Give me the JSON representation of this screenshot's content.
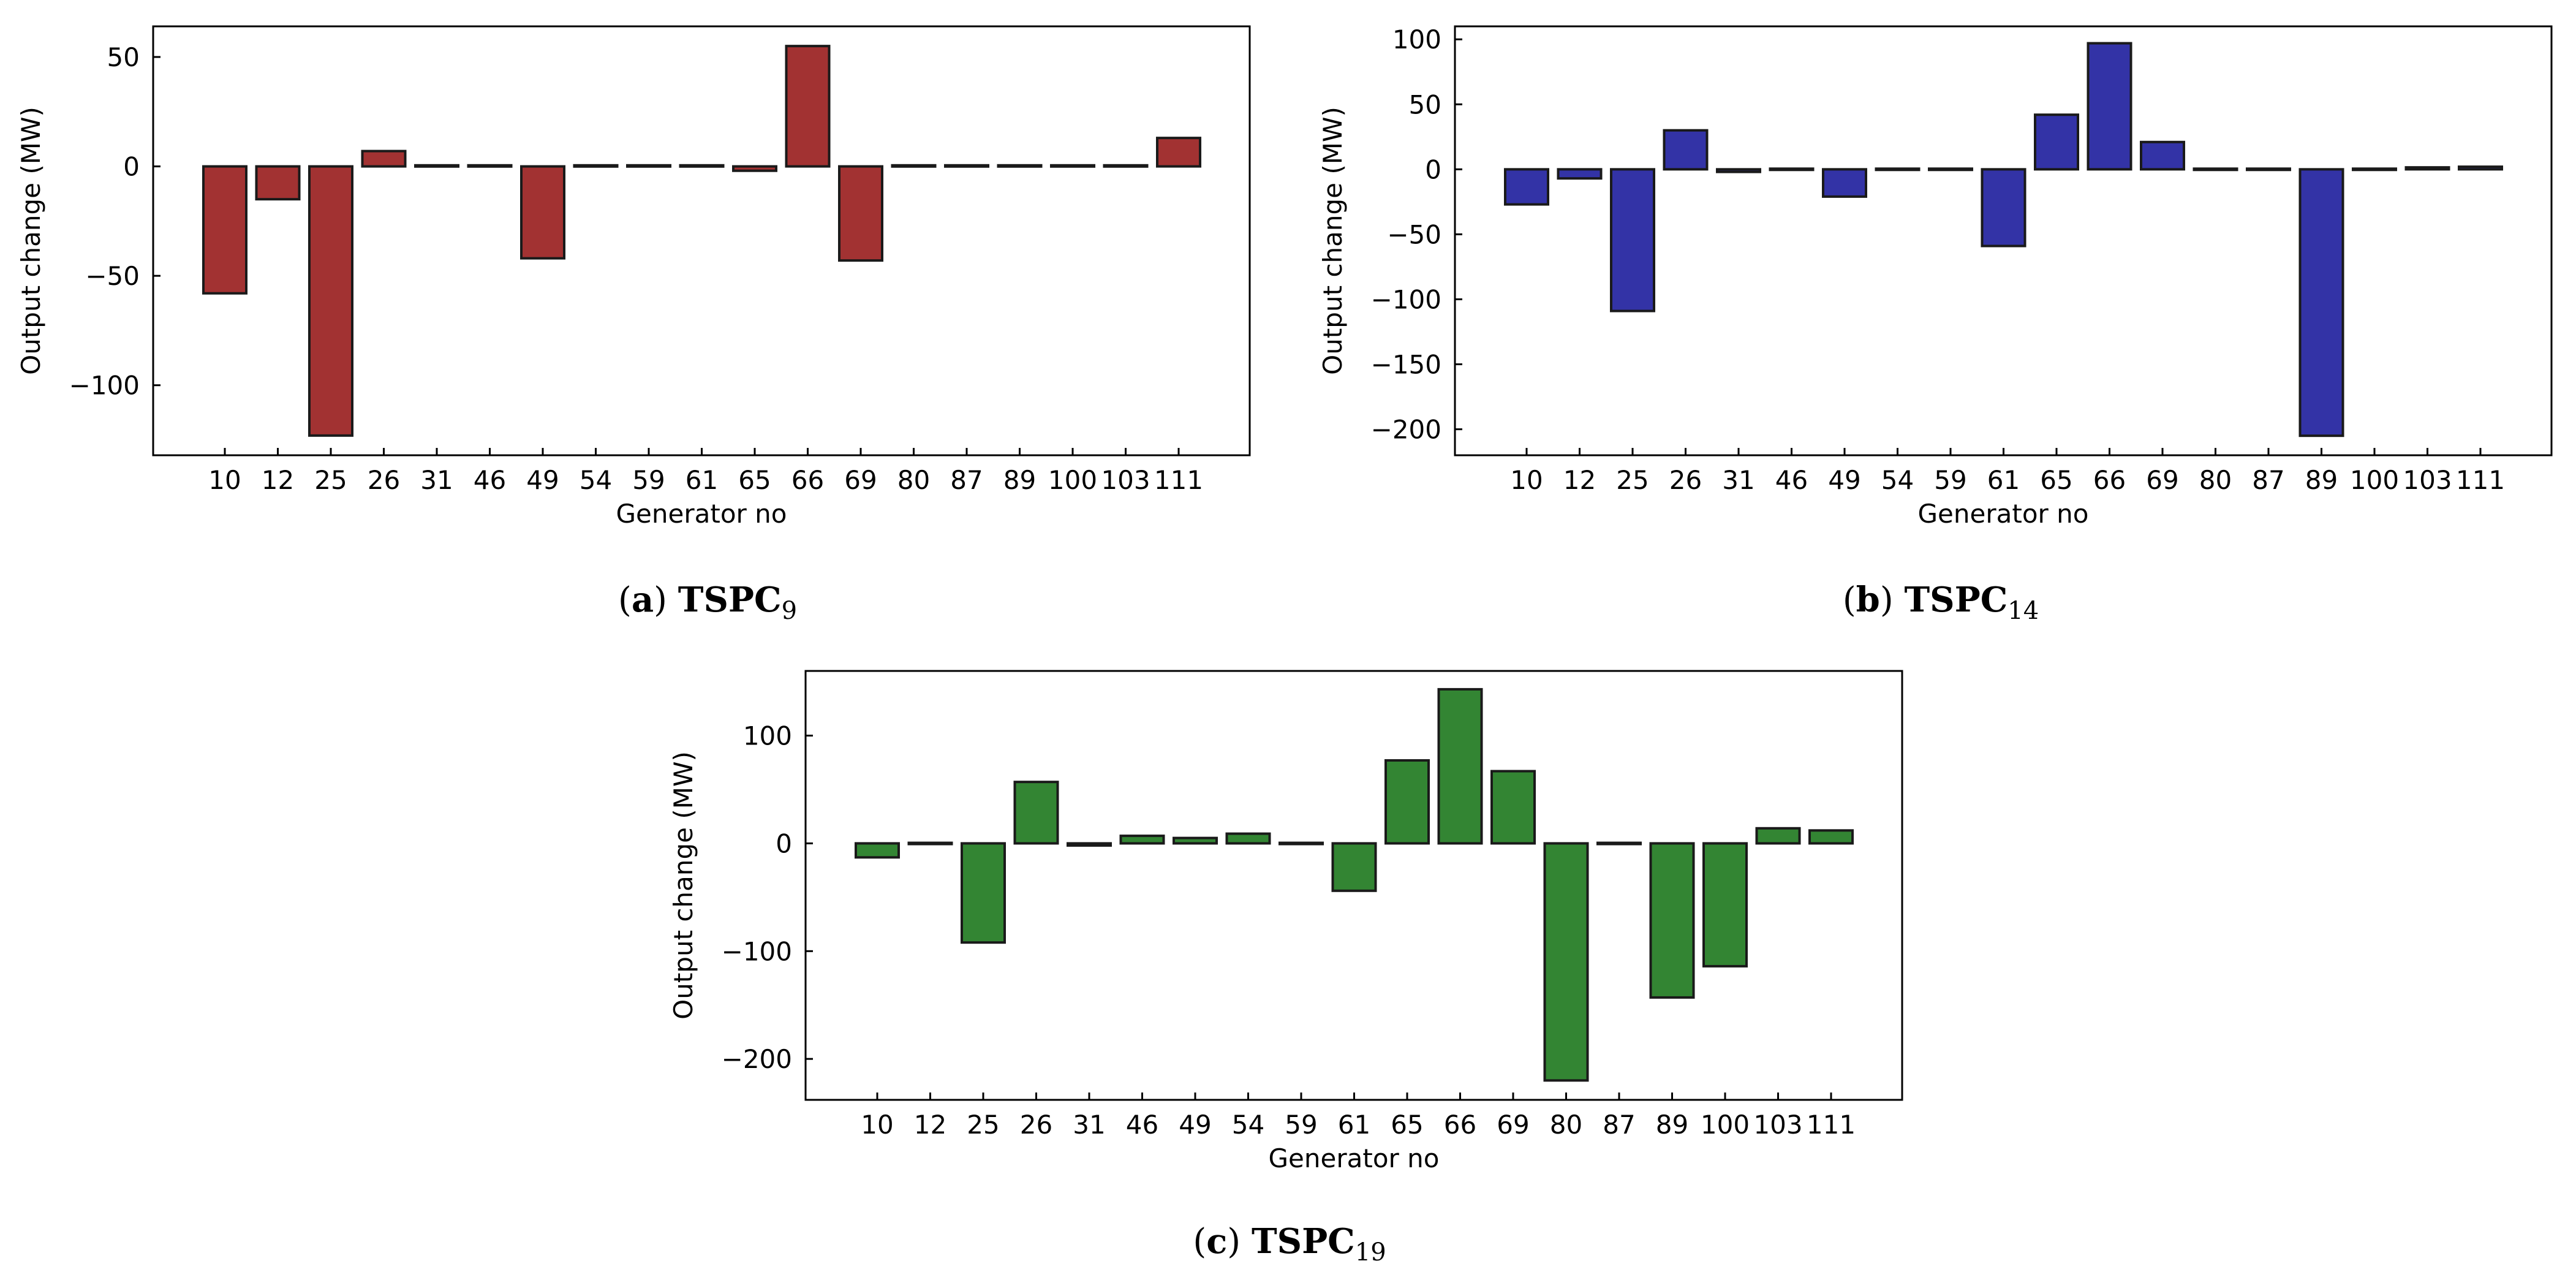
{
  "figure": {
    "colors": {
      "bar_a": "#a23232",
      "bar_b": "#3333a6",
      "bar_c": "#338533",
      "edge": "#1a1a1a"
    }
  },
  "chart_data": [
    {
      "id": "a",
      "type": "bar",
      "caption_prefix": "(a)",
      "caption_bold": "TSPC",
      "caption_sub": "9",
      "xlabel": "Generator no",
      "ylabel": "Output change (MW)",
      "categories": [
        "10",
        "12",
        "25",
        "26",
        "31",
        "46",
        "49",
        "54",
        "59",
        "61",
        "65",
        "66",
        "69",
        "80",
        "87",
        "89",
        "100",
        "103",
        "111"
      ],
      "values": [
        -58,
        -15,
        -123,
        7,
        0.5,
        0.5,
        -42,
        0.5,
        0.5,
        0.5,
        -2,
        55,
        -43,
        0.5,
        0.5,
        0.5,
        0.5,
        0.5,
        13
      ],
      "ylim": [
        -132,
        64
      ],
      "yticks": [
        50,
        0,
        -50,
        -100
      ],
      "ytick_labels": [
        "50",
        "0",
        "−50",
        "−100"
      ],
      "grid": false
    },
    {
      "id": "b",
      "type": "bar",
      "caption_prefix": "(b)",
      "caption_bold": "TSPC",
      "caption_sub": "14",
      "xlabel": "Generator no",
      "ylabel": "Output change (MW)",
      "categories": [
        "10",
        "12",
        "25",
        "26",
        "31",
        "46",
        "49",
        "54",
        "59",
        "61",
        "65",
        "66",
        "69",
        "80",
        "87",
        "89",
        "100",
        "103",
        "111"
      ],
      "values": [
        -27,
        -7,
        -109,
        30,
        -2,
        0.5,
        -21,
        0.5,
        0.5,
        -59,
        42,
        97,
        21,
        0.5,
        0.5,
        -205,
        0.5,
        1.5,
        2
      ],
      "ylim": [
        -220,
        110
      ],
      "yticks": [
        100,
        50,
        0,
        -50,
        -100,
        -150,
        -200
      ],
      "ytick_labels": [
        "100",
        "50",
        "0",
        "−50",
        "−100",
        "−150",
        "−200"
      ],
      "grid": false
    },
    {
      "id": "c",
      "type": "bar",
      "caption_prefix": "(c)",
      "caption_bold": "TSPC",
      "caption_sub": "19",
      "xlabel": "Generator no",
      "ylabel": "Output change (MW)",
      "categories": [
        "10",
        "12",
        "25",
        "26",
        "31",
        "46",
        "49",
        "54",
        "59",
        "61",
        "65",
        "66",
        "69",
        "80",
        "87",
        "89",
        "100",
        "103",
        "111"
      ],
      "values": [
        -13,
        0.5,
        -92,
        57,
        -2,
        7,
        5,
        9,
        0.5,
        -44,
        77,
        143,
        67,
        -220,
        0.5,
        -143,
        -114,
        14,
        12
      ],
      "ylim": [
        -238,
        160
      ],
      "yticks": [
        100,
        0,
        -100,
        -200
      ],
      "ytick_labels": [
        "100",
        "0",
        "−100",
        "−200"
      ],
      "grid": false
    }
  ]
}
